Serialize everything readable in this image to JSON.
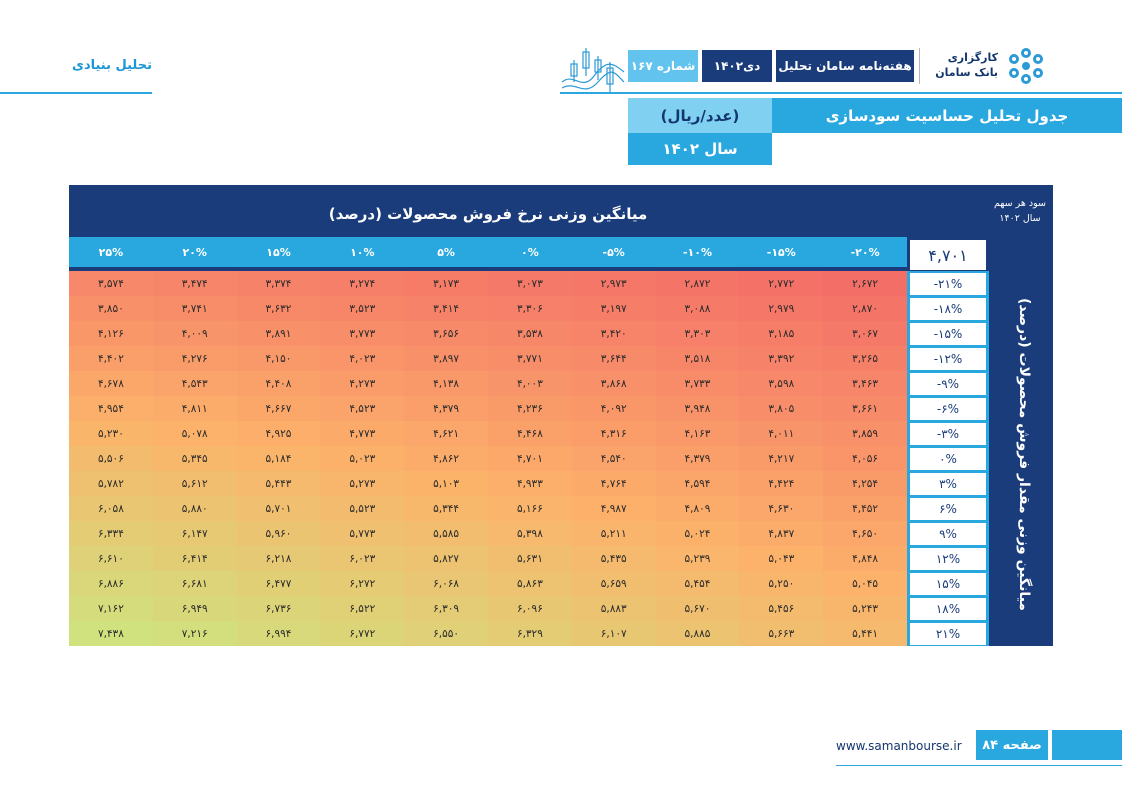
{
  "header": {
    "section_label": "تحلیل بنیادی",
    "logo_line1": "کارگزاری",
    "logo_line2": "بانک سامان",
    "newsletter": "هفته‌نامه سامان تحلیل",
    "month": "دی۱۴۰۲",
    "issue": "شماره ۱۶۷",
    "logo_icon": "saman-flower-logo-icon",
    "decor_icon": "candlestick-chart-icon"
  },
  "title": {
    "main": "جدول تحلیل حساسیت سودسازی",
    "unit": "(عدد/ریال)",
    "year": "سال ۱۴۰۲"
  },
  "table": {
    "eps_label_line1": "سود هر سهم",
    "eps_label_line2": "سال ۱۴۰۲",
    "price_axis_title": "میانگین وزنی نرخ فروش محصولات (درصد)",
    "qty_axis_title": "میانگین وزنی مقدار فروش محصولات (درصد)",
    "base_value": "۴,۷۰۱",
    "columns": [
      "-۲۰%",
      "-۱۵%",
      "-۱۰%",
      "-۵%",
      "۰%",
      "۵%",
      "۱۰%",
      "۱۵%",
      "۲۰%",
      "۲۵%"
    ],
    "rows": [
      {
        "label": "-۲۱%",
        "values": [
          "۲,۶۷۲",
          "۲,۷۷۲",
          "۲,۸۷۲",
          "۲,۹۷۳",
          "۳,۰۷۳",
          "۳,۱۷۳",
          "۳,۲۷۴",
          "۳,۳۷۴",
          "۳,۴۷۴",
          "۳,۵۷۴"
        ]
      },
      {
        "label": "-۱۸%",
        "values": [
          "۲,۸۷۰",
          "۲,۹۷۹",
          "۳,۰۸۸",
          "۳,۱۹۷",
          "۳,۳۰۶",
          "۳,۴۱۴",
          "۳,۵۲۳",
          "۳,۶۳۲",
          "۳,۷۴۱",
          "۳,۸۵۰"
        ]
      },
      {
        "label": "-۱۵%",
        "values": [
          "۳,۰۶۷",
          "۳,۱۸۵",
          "۳,۳۰۳",
          "۳,۴۲۰",
          "۳,۵۳۸",
          "۳,۶۵۶",
          "۳,۷۷۳",
          "۳,۸۹۱",
          "۴,۰۰۹",
          "۴,۱۲۶"
        ]
      },
      {
        "label": "-۱۲%",
        "values": [
          "۳,۲۶۵",
          "۳,۳۹۲",
          "۳,۵۱۸",
          "۳,۶۴۴",
          "۳,۷۷۱",
          "۳,۸۹۷",
          "۴,۰۲۳",
          "۴,۱۵۰",
          "۴,۲۷۶",
          "۴,۴۰۲"
        ]
      },
      {
        "label": "-۹%",
        "values": [
          "۳,۴۶۳",
          "۳,۵۹۸",
          "۳,۷۳۳",
          "۳,۸۶۸",
          "۴,۰۰۳",
          "۴,۱۳۸",
          "۴,۲۷۳",
          "۴,۴۰۸",
          "۴,۵۴۳",
          "۴,۶۷۸"
        ]
      },
      {
        "label": "-۶%",
        "values": [
          "۳,۶۶۱",
          "۳,۸۰۵",
          "۳,۹۴۸",
          "۴,۰۹۲",
          "۴,۲۳۶",
          "۴,۳۷۹",
          "۴,۵۲۳",
          "۴,۶۶۷",
          "۴,۸۱۱",
          "۴,۹۵۴"
        ]
      },
      {
        "label": "-۳%",
        "values": [
          "۳,۸۵۹",
          "۴,۰۱۱",
          "۴,۱۶۳",
          "۴,۳۱۶",
          "۴,۴۶۸",
          "۴,۶۲۱",
          "۴,۷۷۳",
          "۴,۹۲۵",
          "۵,۰۷۸",
          "۵,۲۳۰"
        ]
      },
      {
        "label": "۰%",
        "values": [
          "۴,۰۵۶",
          "۴,۲۱۷",
          "۴,۳۷۹",
          "۴,۵۴۰",
          "۴,۷۰۱",
          "۴,۸۶۲",
          "۵,۰۲۳",
          "۵,۱۸۴",
          "۵,۳۴۵",
          "۵,۵۰۶"
        ]
      },
      {
        "label": "۳%",
        "values": [
          "۴,۲۵۴",
          "۴,۴۲۴",
          "۴,۵۹۴",
          "۴,۷۶۴",
          "۴,۹۳۳",
          "۵,۱۰۳",
          "۵,۲۷۳",
          "۵,۴۴۳",
          "۵,۶۱۲",
          "۵,۷۸۲"
        ]
      },
      {
        "label": "۶%",
        "values": [
          "۴,۴۵۲",
          "۴,۶۳۰",
          "۴,۸۰۹",
          "۴,۹۸۷",
          "۵,۱۶۶",
          "۵,۳۴۴",
          "۵,۵۲۳",
          "۵,۷۰۱",
          "۵,۸۸۰",
          "۶,۰۵۸"
        ]
      },
      {
        "label": "۹%",
        "values": [
          "۴,۶۵۰",
          "۴,۸۳۷",
          "۵,۰۲۴",
          "۵,۲۱۱",
          "۵,۳۹۸",
          "۵,۵۸۵",
          "۵,۷۷۳",
          "۵,۹۶۰",
          "۶,۱۴۷",
          "۶,۳۳۴"
        ]
      },
      {
        "label": "۱۲%",
        "values": [
          "۴,۸۴۸",
          "۵,۰۴۳",
          "۵,۲۳۹",
          "۵,۴۳۵",
          "۵,۶۳۱",
          "۵,۸۲۷",
          "۶,۰۲۳",
          "۶,۲۱۸",
          "۶,۴۱۴",
          "۶,۶۱۰"
        ]
      },
      {
        "label": "۱۵%",
        "values": [
          "۵,۰۴۵",
          "۵,۲۵۰",
          "۵,۴۵۴",
          "۵,۶۵۹",
          "۵,۸۶۳",
          "۶,۰۶۸",
          "۶,۲۷۲",
          "۶,۴۷۷",
          "۶,۶۸۱",
          "۶,۸۸۶"
        ]
      },
      {
        "label": "۱۸%",
        "values": [
          "۵,۲۴۳",
          "۵,۴۵۶",
          "۵,۶۷۰",
          "۵,۸۸۳",
          "۶,۰۹۶",
          "۶,۳۰۹",
          "۶,۵۲۲",
          "۶,۷۳۶",
          "۶,۹۴۹",
          "۷,۱۶۲"
        ]
      },
      {
        "label": "۲۱%",
        "values": [
          "۵,۴۴۱",
          "۵,۶۶۳",
          "۵,۸۸۵",
          "۶,۱۰۷",
          "۶,۳۲۹",
          "۶,۵۵۰",
          "۶,۷۷۲",
          "۶,۹۹۴",
          "۷,۲۱۶",
          "۷,۴۳۸"
        ]
      }
    ],
    "heat_colors": {
      "low": "#f46e68",
      "mid": "#fcb26a",
      "high": "#cfe27e"
    }
  },
  "footer": {
    "site": "www.samanbourse.ir",
    "page": "صفحه ۸۴"
  }
}
